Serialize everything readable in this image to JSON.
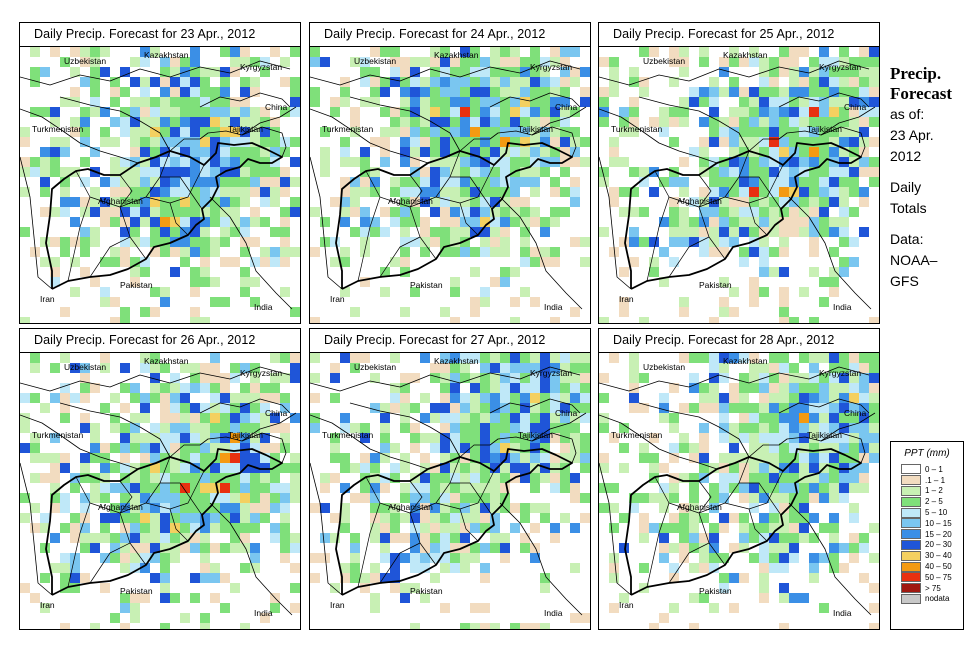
{
  "panels": [
    {
      "title": "Daily Precip. Forecast for  23 Apr., 2012"
    },
    {
      "title": "Daily Precip. Forecast for  24 Apr., 2012"
    },
    {
      "title": "Daily Precip. Forecast for  25 Apr., 2012"
    },
    {
      "title": "Daily Precip. Forecast for  26 Apr., 2012"
    },
    {
      "title": "Daily Precip. Forecast for  27 Apr., 2012"
    },
    {
      "title": "Daily Precip. Forecast for  28 Apr., 2012"
    }
  ],
  "countries": [
    "Kazakhstan",
    "Uzbekistan",
    "Kyrgyzstan",
    "China",
    "Turkmenistan",
    "Tajikistan",
    "Afghanistan",
    "Iran",
    "Pakistan",
    "India"
  ],
  "sidebar": {
    "title_line1": "Precip.",
    "title_line2": "Forecast",
    "asof_line1": "as of:",
    "asof_line2": "23 Apr.",
    "asof_line3": "2012",
    "totals_line1": "Daily",
    "totals_line2": "Totals",
    "data_line1": "Data:",
    "data_line2": "NOAA–",
    "data_line3": "GFS"
  },
  "legend": {
    "title": "PPT (mm)",
    "entries": [
      {
        "label": "0 – 1",
        "color": "#ffffff"
      },
      {
        "label": ".1 – 1",
        "color": "#f2dcc0"
      },
      {
        "label": "1 – 2",
        "color": "#c8f0b4"
      },
      {
        "label": "2 – 5",
        "color": "#7fe07a"
      },
      {
        "label": "5 – 10",
        "color": "#bfe8f8"
      },
      {
        "label": "10 – 15",
        "color": "#7ac6f0"
      },
      {
        "label": "15 – 20",
        "color": "#3b8fe6"
      },
      {
        "label": "20 – 30",
        "color": "#1f55d8"
      },
      {
        "label": "30 – 40",
        "color": "#f4d060"
      },
      {
        "label": "40 – 50",
        "color": "#f49a12"
      },
      {
        "label": "50 – 75",
        "color": "#e83010"
      },
      {
        "label": "> 75",
        "color": "#a01810"
      },
      {
        "label": "nodata",
        "color": "#c8c8c8"
      }
    ]
  }
}
